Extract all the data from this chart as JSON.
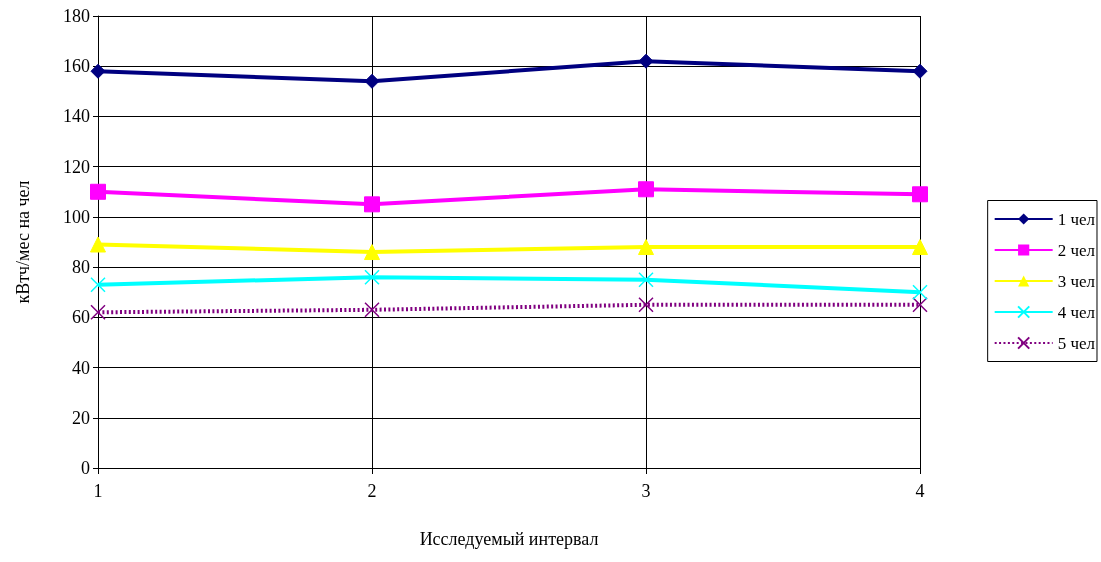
{
  "chart_data": {
    "type": "line",
    "xlabel": "Исследуемый интервал",
    "ylabel": "кВтч/мес на чел",
    "categories": [
      "1",
      "2",
      "3",
      "4"
    ],
    "series": [
      {
        "name": "1 чел",
        "color": "#000080",
        "marker": "diamond",
        "line_style": "solid",
        "values": [
          158,
          154,
          162,
          158
        ]
      },
      {
        "name": "2 чел",
        "color": "#ff00ff",
        "marker": "square",
        "line_style": "solid",
        "values": [
          110,
          105,
          111,
          109
        ]
      },
      {
        "name": "3 чел",
        "color": "#ffff00",
        "marker": "triangle",
        "line_style": "solid",
        "values": [
          89,
          86,
          88,
          88
        ]
      },
      {
        "name": "4 чел",
        "color": "#00ffff",
        "marker": "cross",
        "line_style": "solid",
        "values": [
          73,
          76,
          75,
          70
        ]
      },
      {
        "name": "5 чел",
        "color": "#800080",
        "marker": "cross",
        "line_style": "dashed",
        "values": [
          62,
          63,
          65,
          65
        ]
      }
    ],
    "ylim": [
      0,
      180
    ],
    "yticks": [
      0,
      20,
      40,
      60,
      80,
      100,
      120,
      140,
      160,
      180
    ],
    "grid": true,
    "legend": "right"
  }
}
